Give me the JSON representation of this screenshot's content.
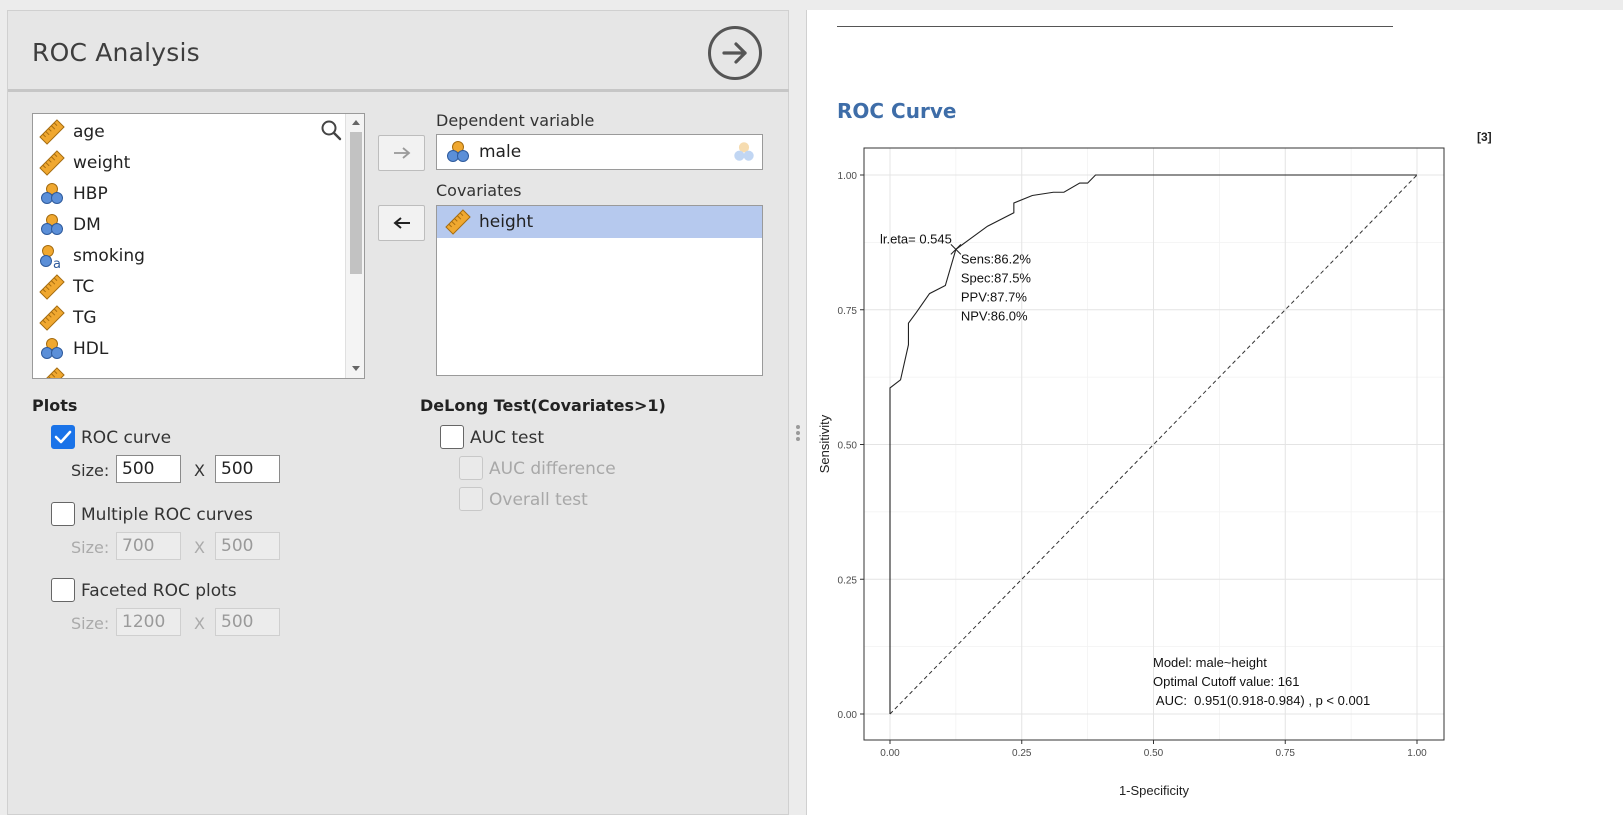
{
  "options": {
    "title": "ROC Analysis",
    "variables": [
      {
        "name": "age",
        "icon": "continuous-ruler-icon"
      },
      {
        "name": "weight",
        "icon": "continuous-ruler-icon"
      },
      {
        "name": "HBP",
        "icon": "nominal-icon"
      },
      {
        "name": "DM",
        "icon": "nominal-icon"
      },
      {
        "name": "smoking",
        "icon": "nominal-text-icon"
      },
      {
        "name": "TC",
        "icon": "continuous-ruler-icon"
      },
      {
        "name": "TG",
        "icon": "continuous-ruler-icon"
      },
      {
        "name": "HDL",
        "icon": "nominal-icon"
      }
    ],
    "dependent_label": "Dependent variable",
    "dependent_value": "male",
    "covariates_label": "Covariates",
    "covariates": [
      "height"
    ],
    "plots_title": "Plots",
    "roc_curve_label": "ROC curve",
    "roc_curve_checked": true,
    "size_label": "Size:",
    "x_label": "X",
    "roc_size_w": "500",
    "roc_size_h": "500",
    "multiple_label": "Multiple ROC curves",
    "multiple_checked": false,
    "multiple_size_w": "700",
    "multiple_size_h": "500",
    "faceted_label": "Faceted ROC plots",
    "faceted_checked": false,
    "faceted_size_w": "1200",
    "faceted_size_h": "500",
    "delong_title": "DeLong Test(Covariates>1)",
    "auc_test_label": "AUC test",
    "auc_diff_label": "AUC difference",
    "overall_test_label": "Overall test"
  },
  "colors": {
    "accent": "#1a73e8",
    "selected_row": "#b6c9ee",
    "result_heading": "#3e6da8",
    "icon_orange": "#f0a830",
    "icon_blue": "#5b8fd8"
  },
  "results": {
    "title": "ROC Curve",
    "ref_tag": "[3]"
  },
  "chart_data": {
    "type": "line",
    "title": "",
    "xlabel": "1-Specificity",
    "ylabel": "Sensitivity",
    "xlim": [
      0,
      1
    ],
    "ylim": [
      0,
      1
    ],
    "x_ticks": [
      "0.00",
      "0.25",
      "0.50",
      "0.75",
      "1.00"
    ],
    "y_ticks": [
      "0.00",
      "0.25",
      "0.50",
      "0.75",
      "1.00"
    ],
    "grid": true,
    "series": [
      {
        "x": [
          0.0,
          0.0,
          0.0,
          0.02,
          0.035,
          0.035,
          0.05,
          0.075,
          0.105,
          0.125,
          0.15,
          0.185,
          0.235,
          0.235,
          0.27,
          0.31,
          0.33,
          0.36,
          0.375,
          0.39,
          0.39,
          0.42,
          1.0
        ],
        "y": [
          0.0,
          0.35,
          0.605,
          0.62,
          0.685,
          0.725,
          0.745,
          0.78,
          0.795,
          0.862,
          0.88,
          0.905,
          0.93,
          0.948,
          0.962,
          0.968,
          0.968,
          0.985,
          0.985,
          1.0,
          1.0,
          1.0,
          1.0
        ]
      },
      {
        "x": [
          0,
          1
        ],
        "y": [
          0,
          1
        ]
      }
    ],
    "optimal_point": {
      "x": 0.125,
      "y": 0.862
    },
    "annotations": {
      "cutoff_label": "lr.eta= 0.545",
      "sens": "Sens:86.2%",
      "spec": "Spec:87.5%",
      "ppv": "PPV:87.7%",
      "npv": "NPV:86.0%",
      "model": "Model: male~height",
      "optimal_cutoff": "Optimal Cutoff value:  161",
      "auc": " AUC:  0.951(0.918-0.984) , p < 0.001"
    }
  }
}
